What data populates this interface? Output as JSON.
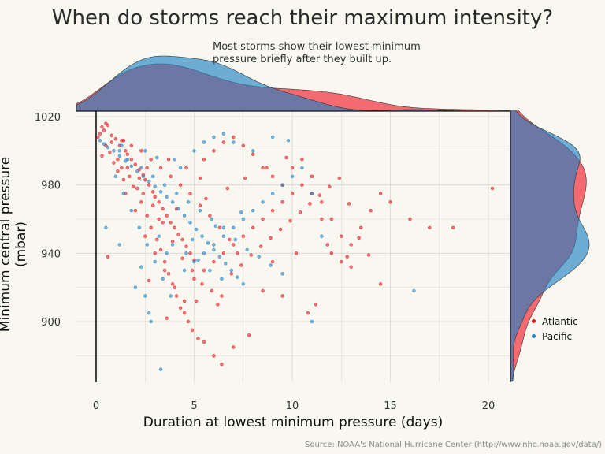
{
  "chart_data": {
    "type": "scatter",
    "title": "When do storms reach their maximum intensity?",
    "subtitle": "Most storms show their lowest minimum pressure briefly after they built up.",
    "caption": "Source: NOAA's National Hurricane Center (http://www.nhc.noaa.gov/data/)",
    "xlabel": "Duration at lowest minimum pressure (days)",
    "ylabel": "Minimum central pressure (mbar)",
    "xlim": [
      -1.0,
      21.2
    ],
    "ylim": [
      865,
      1024
    ],
    "xticks": [
      0,
      5,
      10,
      15,
      20
    ],
    "yticks": [
      900,
      940,
      980,
      1020
    ],
    "grid": true,
    "legend": {
      "position": "bottom-right",
      "entries": [
        {
          "label": "Atlantic",
          "color": "#e8111e"
        },
        {
          "label": "Pacific",
          "color": "#1a7fc1"
        }
      ]
    },
    "series": [
      {
        "name": "Atlantic",
        "color": "#e8111e",
        "points": [
          [
            0.1,
            1008
          ],
          [
            0.2,
            1010
          ],
          [
            0.3,
            1014
          ],
          [
            0.4,
            1012
          ],
          [
            0.5,
            1016
          ],
          [
            0.6,
            1015
          ],
          [
            0.8,
            1005
          ],
          [
            1.0,
            1007
          ],
          [
            1.2,
            1003
          ],
          [
            1.4,
            1006
          ],
          [
            1.5,
            1000
          ],
          [
            1.6,
            998
          ],
          [
            1.8,
            995
          ],
          [
            2.0,
            992
          ],
          [
            2.2,
            989
          ],
          [
            2.4,
            986
          ],
          [
            2.5,
            983
          ],
          [
            2.7,
            980
          ],
          [
            2.9,
            976
          ],
          [
            3.0,
            973
          ],
          [
            3.2,
            970
          ],
          [
            3.4,
            966
          ],
          [
            3.6,
            962
          ],
          [
            3.8,
            958
          ],
          [
            4.0,
            955
          ],
          [
            4.2,
            951
          ],
          [
            4.4,
            948
          ],
          [
            4.6,
            944
          ],
          [
            4.8,
            940
          ],
          [
            5.0,
            936
          ],
          [
            1.1,
            995
          ],
          [
            1.3,
            990
          ],
          [
            1.7,
            985
          ],
          [
            2.1,
            978
          ],
          [
            2.3,
            970
          ],
          [
            2.6,
            962
          ],
          [
            2.8,
            955
          ],
          [
            3.1,
            948
          ],
          [
            3.3,
            942
          ],
          [
            3.5,
            935
          ],
          [
            3.7,
            928
          ],
          [
            3.9,
            922
          ],
          [
            4.1,
            915
          ],
          [
            4.3,
            908
          ],
          [
            4.5,
            905
          ],
          [
            4.7,
            900
          ],
          [
            4.9,
            895
          ],
          [
            5.2,
            890
          ],
          [
            5.5,
            888
          ],
          [
            6.0,
            880
          ],
          [
            6.4,
            875
          ],
          [
            7.0,
            885
          ],
          [
            1.5,
            975
          ],
          [
            2.0,
            965
          ],
          [
            2.5,
            950
          ],
          [
            3.0,
            940
          ],
          [
            3.5,
            930
          ],
          [
            4.0,
            920
          ],
          [
            4.5,
            912
          ],
          [
            5.0,
            925
          ],
          [
            5.5,
            930
          ],
          [
            6.0,
            935
          ],
          [
            6.5,
            940
          ],
          [
            7.0,
            945
          ],
          [
            7.5,
            950
          ],
          [
            8.0,
            955
          ],
          [
            8.5,
            960
          ],
          [
            9.0,
            965
          ],
          [
            9.5,
            970
          ],
          [
            10.0,
            975
          ],
          [
            10.5,
            980
          ],
          [
            11.0,
            985
          ],
          [
            11.5,
            970
          ],
          [
            12.0,
            960
          ],
          [
            12.5,
            950
          ],
          [
            13.0,
            945
          ],
          [
            13.5,
            955
          ],
          [
            14.0,
            965
          ],
          [
            14.5,
            975
          ],
          [
            15.0,
            970
          ],
          [
            16.0,
            960
          ],
          [
            17.0,
            955
          ],
          [
            18.2,
            955
          ],
          [
            20.2,
            978
          ],
          [
            5.5,
            995
          ],
          [
            6.0,
            1000
          ],
          [
            6.5,
            1005
          ],
          [
            7.0,
            1008
          ],
          [
            7.5,
            1003
          ],
          [
            8.0,
            998
          ],
          [
            8.5,
            990
          ],
          [
            9.0,
            985
          ],
          [
            9.5,
            980
          ],
          [
            10.0,
            990
          ],
          [
            10.5,
            995
          ],
          [
            11.0,
            975
          ],
          [
            11.5,
            960
          ],
          [
            12.0,
            940
          ],
          [
            12.5,
            935
          ],
          [
            13.0,
            932
          ],
          [
            14.5,
            922
          ],
          [
            11.2,
            910
          ],
          [
            10.8,
            905
          ],
          [
            9.5,
            915
          ],
          [
            8.5,
            918
          ],
          [
            7.8,
            892
          ],
          [
            7.2,
            940
          ],
          [
            6.8,
            948
          ],
          [
            6.3,
            955
          ],
          [
            5.8,
            962
          ],
          [
            5.3,
            968
          ],
          [
            4.8,
            975
          ],
          [
            4.3,
            980
          ],
          [
            3.8,
            985
          ],
          [
            3.3,
            990
          ],
          [
            2.8,
            995
          ],
          [
            2.3,
            1000
          ],
          [
            1.8,
            1003
          ],
          [
            1.3,
            1006
          ],
          [
            0.8,
            1009
          ],
          [
            0.5,
            1003
          ],
          [
            0.3,
            997
          ],
          [
            0.7,
            999
          ],
          [
            0.9,
            993
          ],
          [
            1.1,
            988
          ],
          [
            1.4,
            983
          ],
          [
            1.9,
            979
          ],
          [
            2.4,
            975
          ],
          [
            2.9,
            968
          ],
          [
            3.4,
            958
          ],
          [
            3.9,
            947
          ],
          [
            4.4,
            937
          ],
          [
            4.9,
            930
          ],
          [
            5.4,
            922
          ],
          [
            5.9,
            918
          ],
          [
            6.4,
            915
          ],
          [
            6.9,
            928
          ],
          [
            7.4,
            933
          ],
          [
            7.9,
            939
          ],
          [
            8.4,
            944
          ],
          [
            8.9,
            949
          ],
          [
            9.4,
            954
          ],
          [
            9.9,
            959
          ],
          [
            10.4,
            964
          ],
          [
            10.9,
            969
          ],
          [
            11.4,
            974
          ],
          [
            11.9,
            979
          ],
          [
            12.4,
            984
          ],
          [
            12.9,
            969
          ],
          [
            13.4,
            949
          ],
          [
            13.9,
            939
          ],
          [
            0.6,
            938
          ],
          [
            2.7,
            924
          ],
          [
            3.6,
            902
          ],
          [
            5.1,
            912
          ],
          [
            6.2,
            910
          ],
          [
            9.0,
            935
          ],
          [
            10.2,
            940
          ],
          [
            11.8,
            945
          ],
          [
            12.8,
            938
          ],
          [
            3.2,
            960
          ],
          [
            4.1,
            966
          ],
          [
            5.6,
            972
          ],
          [
            6.7,
            978
          ],
          [
            7.6,
            984
          ],
          [
            8.7,
            990
          ],
          [
            9.7,
            996
          ],
          [
            1.6,
            990
          ],
          [
            2.2,
            984
          ],
          [
            2.6,
            990
          ],
          [
            3.7,
            995
          ],
          [
            4.6,
            990
          ],
          [
            5.3,
            984
          ]
        ]
      },
      {
        "name": "Pacific",
        "color": "#1a7fc1",
        "points": [
          [
            0.2,
            1006
          ],
          [
            0.4,
            1004
          ],
          [
            0.6,
            1002
          ],
          [
            0.9,
            1000
          ],
          [
            1.2,
            997
          ],
          [
            1.5,
            994
          ],
          [
            1.8,
            991
          ],
          [
            2.1,
            988
          ],
          [
            2.4,
            985
          ],
          [
            2.7,
            982
          ],
          [
            3.0,
            979
          ],
          [
            3.3,
            976
          ],
          [
            3.6,
            973
          ],
          [
            3.9,
            970
          ],
          [
            4.2,
            966
          ],
          [
            4.5,
            962
          ],
          [
            4.8,
            958
          ],
          [
            5.1,
            954
          ],
          [
            5.4,
            950
          ],
          [
            5.7,
            946
          ],
          [
            6.0,
            942
          ],
          [
            6.3,
            938
          ],
          [
            6.6,
            934
          ],
          [
            6.9,
            930
          ],
          [
            7.2,
            926
          ],
          [
            7.5,
            922
          ],
          [
            1.0,
            985
          ],
          [
            1.4,
            975
          ],
          [
            1.8,
            965
          ],
          [
            2.2,
            955
          ],
          [
            2.6,
            945
          ],
          [
            3.0,
            935
          ],
          [
            3.4,
            925
          ],
          [
            3.8,
            915
          ],
          [
            2.0,
            920
          ],
          [
            2.5,
            915
          ],
          [
            2.7,
            905
          ],
          [
            2.8,
            900
          ],
          [
            3.3,
            872
          ],
          [
            4.5,
            930
          ],
          [
            5.0,
            935
          ],
          [
            5.5,
            940
          ],
          [
            6.0,
            945
          ],
          [
            6.5,
            950
          ],
          [
            7.0,
            955
          ],
          [
            7.5,
            960
          ],
          [
            8.0,
            965
          ],
          [
            8.5,
            970
          ],
          [
            9.0,
            975
          ],
          [
            9.5,
            980
          ],
          [
            10.0,
            985
          ],
          [
            10.5,
            990
          ],
          [
            11.0,
            975
          ],
          [
            11.5,
            950
          ],
          [
            11.0,
            900
          ],
          [
            16.2,
            918
          ],
          [
            4.0,
            995
          ],
          [
            5.0,
            1000
          ],
          [
            5.5,
            1005
          ],
          [
            6.0,
            1008
          ],
          [
            6.5,
            1010
          ],
          [
            7.0,
            1005
          ],
          [
            8.0,
            1000
          ],
          [
            9.0,
            1008
          ],
          [
            9.8,
            1006
          ],
          [
            1.2,
            1000
          ],
          [
            1.6,
            995
          ],
          [
            2.3,
            990
          ],
          [
            2.9,
            985
          ],
          [
            3.5,
            980
          ],
          [
            4.1,
            975
          ],
          [
            4.7,
            970
          ],
          [
            5.3,
            965
          ],
          [
            5.9,
            960
          ],
          [
            6.5,
            955
          ],
          [
            7.1,
            948
          ],
          [
            7.7,
            942
          ],
          [
            8.3,
            938
          ],
          [
            8.9,
            933
          ],
          [
            9.5,
            928
          ],
          [
            3.2,
            950
          ],
          [
            3.9,
            945
          ],
          [
            4.6,
            940
          ],
          [
            5.2,
            936
          ],
          [
            5.8,
            930
          ],
          [
            6.4,
            925
          ],
          [
            1.3,
            1003
          ],
          [
            2.5,
            1000
          ],
          [
            3.1,
            996
          ],
          [
            4.3,
            990
          ],
          [
            0.5,
            955
          ],
          [
            1.2,
            945
          ],
          [
            2.3,
            932
          ],
          [
            3.6,
            940
          ],
          [
            4.9,
            948
          ],
          [
            6.1,
            956
          ],
          [
            7.4,
            964
          ]
        ]
      }
    ]
  }
}
